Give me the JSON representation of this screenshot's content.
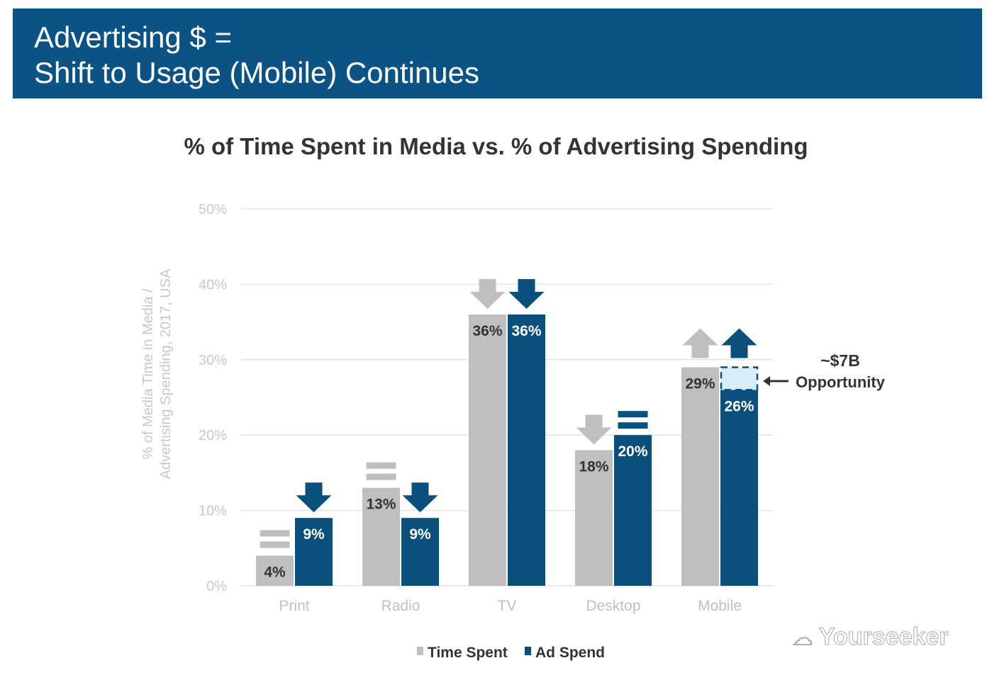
{
  "header": {
    "line1": "Advertising $ =",
    "line2": "Shift to Usage (Mobile) Continues"
  },
  "colors": {
    "header": "#0b5384",
    "time_spent": "#bfbfbf",
    "ad_spend": "#0b4f7c",
    "opportunity_fill": "#d7edf8"
  },
  "chart_data": {
    "type": "bar",
    "title": "% of Time Spent in Media vs. % of Advertising Spending",
    "ylabel": "% of Media Time in Media / Advertising Spending, 2017, USA",
    "ylim": [
      0,
      50
    ],
    "yticks": [
      "0%",
      "10%",
      "20%",
      "30%",
      "40%",
      "50%"
    ],
    "grid": true,
    "legend": "bottom",
    "categories": [
      "Print",
      "Radio",
      "TV",
      "Desktop",
      "Mobile"
    ],
    "series": [
      {
        "name": "Time Spent",
        "values": [
          4,
          13,
          36,
          18,
          29
        ],
        "labels": [
          "4%",
          "13%",
          "36%",
          "18%",
          "29%"
        ],
        "trend": [
          "equal",
          "equal",
          "down",
          "down",
          "up"
        ]
      },
      {
        "name": "Ad Spend",
        "values": [
          9,
          9,
          36,
          20,
          26
        ],
        "labels": [
          "9%",
          "9%",
          "36%",
          "20%",
          "26%"
        ],
        "trend": [
          "down",
          "down",
          "down",
          "equal",
          "up"
        ]
      }
    ],
    "annotation": {
      "line1": "~$7B",
      "line2": "Opportunity",
      "from": 26,
      "to": 29,
      "category": "Mobile"
    }
  },
  "watermark": "Yourseeker"
}
